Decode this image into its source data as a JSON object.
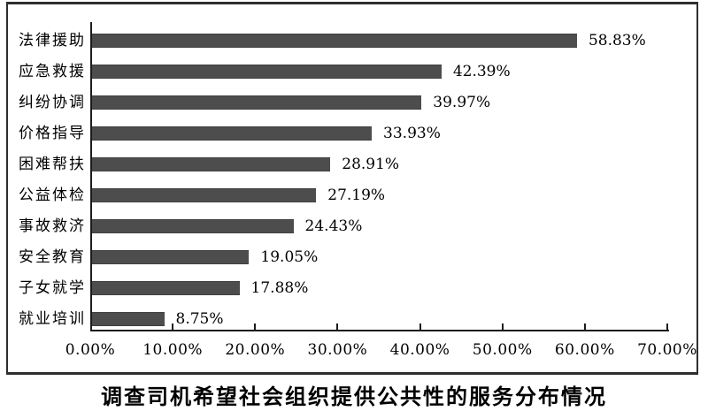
{
  "chart_data": {
    "type": "bar",
    "orientation": "horizontal",
    "title": "调查司机希望社会组织提供公共性的服务分布情况",
    "title_position": "bottom",
    "categories": [
      "法律援助",
      "应急救援",
      "纠纷协调",
      "价格指导",
      "困难帮扶",
      "公益体检",
      "事故救济",
      "安全教育",
      "子女就学",
      "就业培训"
    ],
    "values": [
      58.83,
      42.39,
      39.97,
      33.93,
      28.91,
      27.19,
      24.43,
      19.05,
      17.88,
      8.75
    ],
    "value_labels": [
      "58.83%",
      "42.39%",
      "39.97%",
      "33.93%",
      "28.91%",
      "27.19%",
      "24.43%",
      "19.05%",
      "17.88%",
      "8.75%"
    ],
    "x_ticks": [
      0,
      10,
      20,
      30,
      40,
      50,
      60,
      70
    ],
    "x_tick_labels": [
      "0.00%",
      "10.00%",
      "20.00%",
      "30.00%",
      "40.00%",
      "50.00%",
      "60.00%",
      "70.00%"
    ],
    "xlim": [
      0,
      70
    ],
    "grid": false,
    "legend": false,
    "bar_color": "#4d4d4d",
    "axis_color": "#1c1c1c",
    "frame_color": "#2e2e2e",
    "background_color": "#ffffff"
  }
}
